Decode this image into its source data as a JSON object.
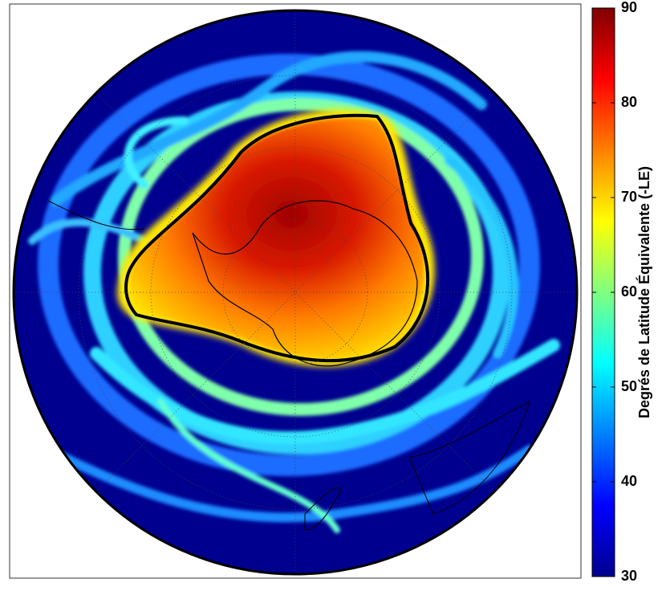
{
  "colorbar": {
    "label": "Degrés de Latitude Équivalente (-LE)",
    "lim": [
      30,
      90
    ],
    "ticks": [
      30,
      40,
      50,
      60,
      70,
      80,
      90
    ],
    "colormap": "jet"
  }
}
